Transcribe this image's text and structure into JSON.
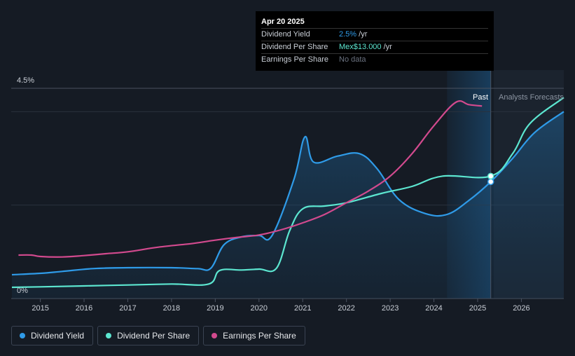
{
  "tooltip": {
    "date": "Apr 20 2025",
    "rows": [
      {
        "label": "Dividend Yield",
        "value": "2.5%",
        "unit": " /yr",
        "color": "#2f9be8"
      },
      {
        "label": "Dividend Per Share",
        "value": "Mex$13.000",
        "unit": " /yr",
        "color": "#5ce6d0"
      },
      {
        "label": "Earnings Per Share",
        "value": "No data",
        "unit": "",
        "color": "#6b7280"
      }
    ]
  },
  "labels": {
    "past": "Past",
    "forecast": "Analysts Forecasts"
  },
  "legend": [
    {
      "label": "Dividend Yield",
      "color": "#2f9be8"
    },
    {
      "label": "Dividend Per Share",
      "color": "#5ce6d0"
    },
    {
      "label": "Earnings Per Share",
      "color": "#d24a8e"
    }
  ],
  "chart_data": {
    "type": "line",
    "y_ticks": [
      "4.5%",
      "0%"
    ],
    "ylim": [
      0,
      4.5
    ],
    "xlim": [
      2014.35,
      2026.97
    ],
    "x_ticks": [
      "2015",
      "2016",
      "2017",
      "2018",
      "2019",
      "2020",
      "2021",
      "2022",
      "2023",
      "2024",
      "2025",
      "2026"
    ],
    "tooltip_x": 2025.3,
    "past_region_start": 2024.3,
    "series": [
      {
        "name": "Dividend Yield",
        "color": "#2f9be8",
        "area": true,
        "points": [
          [
            2014.35,
            0.51
          ],
          [
            2015.0,
            0.54
          ],
          [
            2015.5,
            0.58
          ],
          [
            2016.2,
            0.64
          ],
          [
            2017.0,
            0.66
          ],
          [
            2018.0,
            0.66
          ],
          [
            2018.6,
            0.64
          ],
          [
            2018.9,
            0.65
          ],
          [
            2019.2,
            1.15
          ],
          [
            2019.6,
            1.32
          ],
          [
            2020.0,
            1.35
          ],
          [
            2020.3,
            1.35
          ],
          [
            2020.8,
            2.55
          ],
          [
            2021.05,
            3.46
          ],
          [
            2021.25,
            2.92
          ],
          [
            2021.8,
            3.05
          ],
          [
            2022.3,
            3.1
          ],
          [
            2022.7,
            2.78
          ],
          [
            2023.2,
            2.12
          ],
          [
            2023.8,
            1.82
          ],
          [
            2024.3,
            1.8
          ],
          [
            2024.8,
            2.1
          ],
          [
            2025.3,
            2.5
          ],
          [
            2025.8,
            3.0
          ],
          [
            2026.3,
            3.55
          ],
          [
            2026.97,
            4.0
          ]
        ]
      },
      {
        "name": "Dividend Per Share",
        "color": "#5ce6d0",
        "area": false,
        "points": [
          [
            2014.35,
            0.24
          ],
          [
            2015.0,
            0.25
          ],
          [
            2016.0,
            0.27
          ],
          [
            2017.0,
            0.29
          ],
          [
            2018.0,
            0.31
          ],
          [
            2018.85,
            0.31
          ],
          [
            2019.1,
            0.6
          ],
          [
            2019.6,
            0.61
          ],
          [
            2020.0,
            0.63
          ],
          [
            2020.4,
            0.65
          ],
          [
            2020.7,
            1.45
          ],
          [
            2021.0,
            1.92
          ],
          [
            2021.5,
            1.98
          ],
          [
            2022.0,
            2.05
          ],
          [
            2022.8,
            2.25
          ],
          [
            2023.5,
            2.4
          ],
          [
            2024.2,
            2.62
          ],
          [
            2025.3,
            2.62
          ],
          [
            2025.8,
            3.1
          ],
          [
            2026.2,
            3.75
          ],
          [
            2026.97,
            4.3
          ]
        ]
      },
      {
        "name": "Earnings Per Share",
        "color": "#d24a8e",
        "area": false,
        "points": [
          [
            2014.5,
            0.93
          ],
          [
            2014.8,
            0.93
          ],
          [
            2015.0,
            0.9
          ],
          [
            2015.5,
            0.89
          ],
          [
            2016.0,
            0.92
          ],
          [
            2016.5,
            0.96
          ],
          [
            2017.0,
            1.0
          ],
          [
            2017.7,
            1.1
          ],
          [
            2018.5,
            1.18
          ],
          [
            2019.0,
            1.25
          ],
          [
            2019.5,
            1.31
          ],
          [
            2020.0,
            1.36
          ],
          [
            2020.5,
            1.47
          ],
          [
            2021.0,
            1.62
          ],
          [
            2021.5,
            1.8
          ],
          [
            2022.0,
            2.05
          ],
          [
            2022.5,
            2.3
          ],
          [
            2023.0,
            2.62
          ],
          [
            2023.5,
            3.1
          ],
          [
            2024.0,
            3.7
          ],
          [
            2024.5,
            4.2
          ],
          [
            2024.8,
            4.15
          ],
          [
            2025.1,
            4.12
          ]
        ]
      }
    ],
    "markers": [
      {
        "series": "Dividend Yield",
        "x": 2025.3,
        "y": 2.5
      },
      {
        "series": "Dividend Per Share",
        "x": 2025.3,
        "y": 2.62
      }
    ]
  }
}
